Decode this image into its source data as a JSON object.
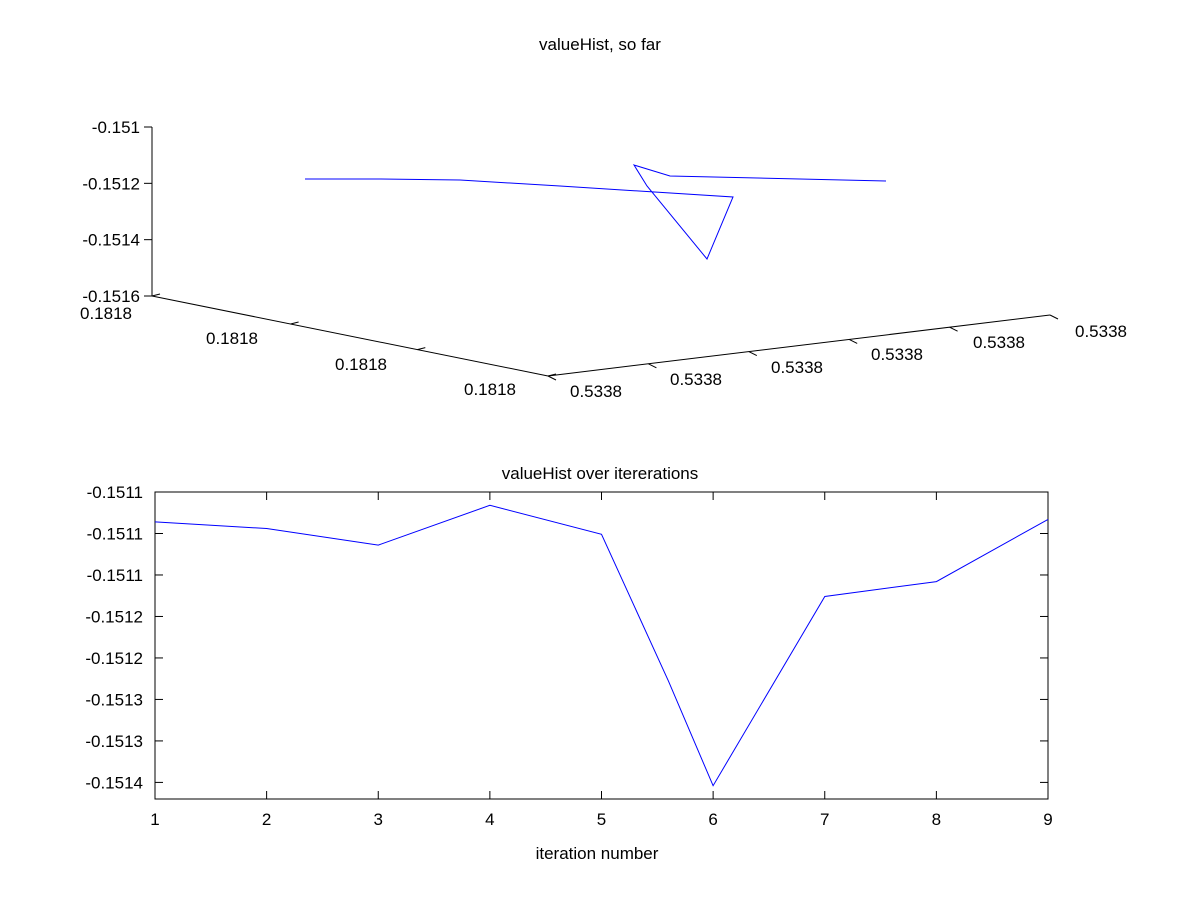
{
  "colors": {
    "line": "#0000ff",
    "axis": "#000000",
    "background": "#ffffff"
  },
  "chart_data": [
    {
      "type": "line",
      "title": "valueHist, so far",
      "projection": "3d",
      "xlabel": "",
      "ylabel": "",
      "zlabel": "",
      "x_axis": {
        "ticklabels": [
          "0.1818",
          "0.1818",
          "0.1818",
          "0.1818"
        ],
        "range": [
          0.18175,
          0.18185
        ]
      },
      "y_axis": {
        "ticklabels": [
          "0.5338",
          "0.5338",
          "0.5338",
          "0.5338",
          "0.5338",
          "0.5338"
        ],
        "range": [
          0.53375,
          0.53385
        ]
      },
      "z_axis": {
        "ticklabels": [
          "-0.151",
          "-0.1512",
          "-0.1514",
          "-0.1516"
        ],
        "ticks": [
          -0.151,
          -0.1512,
          -0.1514,
          -0.1516
        ],
        "range": [
          -0.1516,
          -0.151
        ]
      },
      "grid": false,
      "series": [
        {
          "x": [
            0.18184,
            0.18182,
            0.1818,
            0.18178,
            0.18177,
            0.18178,
            0.1818,
            0.18181,
            0.18182,
            0.18183
          ],
          "y": [
            0.53376,
            0.53378,
            0.5338,
            0.53381,
            0.53383,
            0.53381,
            0.53382,
            0.53382,
            0.53383,
            0.53384
          ],
          "z": [
            -0.15119,
            -0.15119,
            -0.15119,
            -0.1512,
            -0.15124,
            -0.15146,
            -0.15116,
            -0.15118,
            -0.15119,
            -0.1512
          ]
        }
      ]
    },
    {
      "type": "line",
      "title": "valueHist over itererations",
      "xlabel": "iteration number",
      "ylabel": "",
      "xlim": [
        1,
        9
      ],
      "ylim": [
        -0.15142,
        -0.15105
      ],
      "grid": false,
      "x_ticklabels": [
        "1",
        "2",
        "3",
        "4",
        "5",
        "6",
        "7",
        "8",
        "9"
      ],
      "y_ticks": [
        -0.15105,
        -0.1511,
        -0.15115,
        -0.1512,
        -0.15125,
        -0.1513,
        -0.15135,
        -0.1514
      ],
      "y_ticklabels": [
        "-0.1511",
        "-0.1511",
        "-0.1511",
        "-0.1512",
        "-0.1512",
        "-0.1513",
        "-0.1513",
        "-0.1514"
      ],
      "series": [
        {
          "x": [
            1,
            2,
            3,
            4,
            5,
            5.6,
            6,
            7,
            8,
            9
          ],
          "y": [
            -0.151086,
            -0.151094,
            -0.151114,
            -0.151066,
            -0.151101,
            -0.151278,
            -0.151404,
            -0.151176,
            -0.151158,
            -0.151083
          ]
        }
      ]
    }
  ]
}
